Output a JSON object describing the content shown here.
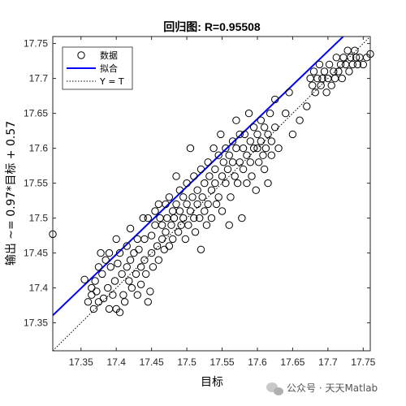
{
  "chart_data": {
    "type": "scatter",
    "title": "回归图: R=0.95508",
    "xlabel": "目标",
    "ylabel": "输出 ~= 0.97*目标 + 0.57",
    "xlim": [
      17.31,
      17.76
    ],
    "ylim": [
      17.31,
      17.76
    ],
    "xticks": [
      "17.35",
      "17.4",
      "17.45",
      "17.5",
      "17.55",
      "17.6",
      "17.65",
      "17.7",
      "17.75"
    ],
    "yticks": [
      "17.35",
      "17.4",
      "17.45",
      "17.5",
      "17.55",
      "17.6",
      "17.65",
      "17.7",
      "17.75"
    ],
    "grid": false,
    "legend_position": "top-left",
    "legend": [
      {
        "label": "数据",
        "style": "circle"
      },
      {
        "label": "拟合",
        "style": "line",
        "color": "#0000ff"
      },
      {
        "label": "Y = T",
        "style": "dotted"
      }
    ],
    "fit": {
      "slope": 0.97,
      "intercept": 0.57,
      "color": "#0000ff"
    },
    "identity_line": {
      "color": "#000000"
    },
    "points": [
      [
        17.31,
        17.477
      ],
      [
        17.355,
        17.412
      ],
      [
        17.36,
        17.38
      ],
      [
        17.365,
        17.4
      ],
      [
        17.365,
        17.39
      ],
      [
        17.368,
        17.37
      ],
      [
        17.37,
        17.41
      ],
      [
        17.372,
        17.395
      ],
      [
        17.375,
        17.43
      ],
      [
        17.375,
        17.38
      ],
      [
        17.378,
        17.45
      ],
      [
        17.38,
        17.42
      ],
      [
        17.382,
        17.385
      ],
      [
        17.385,
        17.44
      ],
      [
        17.388,
        17.4
      ],
      [
        17.39,
        17.45
      ],
      [
        17.39,
        17.37
      ],
      [
        17.392,
        17.43
      ],
      [
        17.395,
        17.39
      ],
      [
        17.398,
        17.41
      ],
      [
        17.4,
        17.47
      ],
      [
        17.4,
        17.37
      ],
      [
        17.402,
        17.435
      ],
      [
        17.405,
        17.365
      ],
      [
        17.405,
        17.45
      ],
      [
        17.408,
        17.42
      ],
      [
        17.41,
        17.39
      ],
      [
        17.412,
        17.38
      ],
      [
        17.415,
        17.46
      ],
      [
        17.415,
        17.43
      ],
      [
        17.418,
        17.41
      ],
      [
        17.42,
        17.485
      ],
      [
        17.42,
        17.44
      ],
      [
        17.422,
        17.4
      ],
      [
        17.425,
        17.45
      ],
      [
        17.428,
        17.42
      ],
      [
        17.43,
        17.47
      ],
      [
        17.43,
        17.39
      ],
      [
        17.432,
        17.455
      ],
      [
        17.435,
        17.43
      ],
      [
        17.435,
        17.405
      ],
      [
        17.438,
        17.5
      ],
      [
        17.44,
        17.44
      ],
      [
        17.44,
        17.47
      ],
      [
        17.442,
        17.42
      ],
      [
        17.445,
        17.38
      ],
      [
        17.445,
        17.5
      ],
      [
        17.448,
        17.395
      ],
      [
        17.45,
        17.475
      ],
      [
        17.45,
        17.45
      ],
      [
        17.452,
        17.43
      ],
      [
        17.455,
        17.51
      ],
      [
        17.455,
        17.49
      ],
      [
        17.458,
        17.46
      ],
      [
        17.46,
        17.52
      ],
      [
        17.46,
        17.44
      ],
      [
        17.462,
        17.5
      ],
      [
        17.465,
        17.49
      ],
      [
        17.465,
        17.47
      ],
      [
        17.468,
        17.455
      ],
      [
        17.47,
        17.52
      ],
      [
        17.47,
        17.48
      ],
      [
        17.472,
        17.5
      ],
      [
        17.475,
        17.53
      ],
      [
        17.475,
        17.46
      ],
      [
        17.478,
        17.49
      ],
      [
        17.48,
        17.51
      ],
      [
        17.48,
        17.47
      ],
      [
        17.482,
        17.5
      ],
      [
        17.485,
        17.56
      ],
      [
        17.485,
        17.52
      ],
      [
        17.488,
        17.48
      ],
      [
        17.49,
        17.51
      ],
      [
        17.49,
        17.54
      ],
      [
        17.492,
        17.49
      ],
      [
        17.495,
        17.5
      ],
      [
        17.495,
        17.53
      ],
      [
        17.498,
        17.47
      ],
      [
        17.5,
        17.52
      ],
      [
        17.5,
        17.55
      ],
      [
        17.502,
        17.49
      ],
      [
        17.505,
        17.51
      ],
      [
        17.505,
        17.6
      ],
      [
        17.508,
        17.53
      ],
      [
        17.51,
        17.5
      ],
      [
        17.51,
        17.56
      ],
      [
        17.512,
        17.48
      ],
      [
        17.515,
        17.52
      ],
      [
        17.515,
        17.54
      ],
      [
        17.518,
        17.5
      ],
      [
        17.52,
        17.57
      ],
      [
        17.52,
        17.455
      ],
      [
        17.522,
        17.53
      ],
      [
        17.525,
        17.51
      ],
      [
        17.525,
        17.55
      ],
      [
        17.528,
        17.49
      ],
      [
        17.53,
        17.58
      ],
      [
        17.53,
        17.52
      ],
      [
        17.532,
        17.56
      ],
      [
        17.535,
        17.54
      ],
      [
        17.535,
        17.5
      ],
      [
        17.538,
        17.6
      ],
      [
        17.54,
        17.55
      ],
      [
        17.54,
        17.57
      ],
      [
        17.542,
        17.52
      ],
      [
        17.545,
        17.59
      ],
      [
        17.545,
        17.53
      ],
      [
        17.548,
        17.62
      ],
      [
        17.55,
        17.56
      ],
      [
        17.55,
        17.51
      ],
      [
        17.552,
        17.58
      ],
      [
        17.555,
        17.55
      ],
      [
        17.555,
        17.6
      ],
      [
        17.558,
        17.57
      ],
      [
        17.56,
        17.59
      ],
      [
        17.56,
        17.49
      ],
      [
        17.562,
        17.53
      ],
      [
        17.565,
        17.61
      ],
      [
        17.565,
        17.58
      ],
      [
        17.568,
        17.56
      ],
      [
        17.57,
        17.64
      ],
      [
        17.57,
        17.6
      ],
      [
        17.572,
        17.55
      ],
      [
        17.575,
        17.62
      ],
      [
        17.575,
        17.58
      ],
      [
        17.578,
        17.5
      ],
      [
        17.58,
        17.6
      ],
      [
        17.58,
        17.57
      ],
      [
        17.582,
        17.62
      ],
      [
        17.585,
        17.59
      ],
      [
        17.585,
        17.55
      ],
      [
        17.588,
        17.65
      ],
      [
        17.59,
        17.61
      ],
      [
        17.59,
        17.58
      ],
      [
        17.592,
        17.56
      ],
      [
        17.595,
        17.63
      ],
      [
        17.595,
        17.6
      ],
      [
        17.598,
        17.54
      ],
      [
        17.6,
        17.62
      ],
      [
        17.6,
        17.6
      ],
      [
        17.602,
        17.58
      ],
      [
        17.605,
        17.64
      ],
      [
        17.605,
        17.61
      ],
      [
        17.608,
        17.59
      ],
      [
        17.61,
        17.57
      ],
      [
        17.61,
        17.63
      ],
      [
        17.612,
        17.6
      ],
      [
        17.615,
        17.62
      ],
      [
        17.615,
        17.55
      ],
      [
        17.618,
        17.65
      ],
      [
        17.62,
        17.61
      ],
      [
        17.62,
        17.59
      ],
      [
        17.625,
        17.67
      ],
      [
        17.625,
        17.63
      ],
      [
        17.63,
        17.6
      ],
      [
        17.64,
        17.65
      ],
      [
        17.645,
        17.68
      ],
      [
        17.65,
        17.62
      ],
      [
        17.66,
        17.64
      ],
      [
        17.67,
        17.66
      ],
      [
        17.675,
        17.7
      ],
      [
        17.678,
        17.69
      ],
      [
        17.68,
        17.71
      ],
      [
        17.682,
        17.68
      ],
      [
        17.685,
        17.7
      ],
      [
        17.688,
        17.72
      ],
      [
        17.69,
        17.69
      ],
      [
        17.692,
        17.7
      ],
      [
        17.695,
        17.71
      ],
      [
        17.698,
        17.68
      ],
      [
        17.7,
        17.7
      ],
      [
        17.702,
        17.72
      ],
      [
        17.705,
        17.69
      ],
      [
        17.708,
        17.71
      ],
      [
        17.71,
        17.7
      ],
      [
        17.712,
        17.73
      ],
      [
        17.715,
        17.71
      ],
      [
        17.718,
        17.72
      ],
      [
        17.72,
        17.7
      ],
      [
        17.722,
        17.73
      ],
      [
        17.725,
        17.72
      ],
      [
        17.728,
        17.74
      ],
      [
        17.73,
        17.71
      ],
      [
        17.732,
        17.73
      ],
      [
        17.735,
        17.72
      ],
      [
        17.738,
        17.74
      ],
      [
        17.74,
        17.73
      ],
      [
        17.742,
        17.72
      ],
      [
        17.745,
        17.73
      ],
      [
        17.75,
        17.72
      ],
      [
        17.755,
        17.73
      ],
      [
        17.76,
        17.735
      ]
    ]
  },
  "watermark": {
    "text": "公众号 · 天天Matlab",
    "icon": "wechat-icon"
  }
}
